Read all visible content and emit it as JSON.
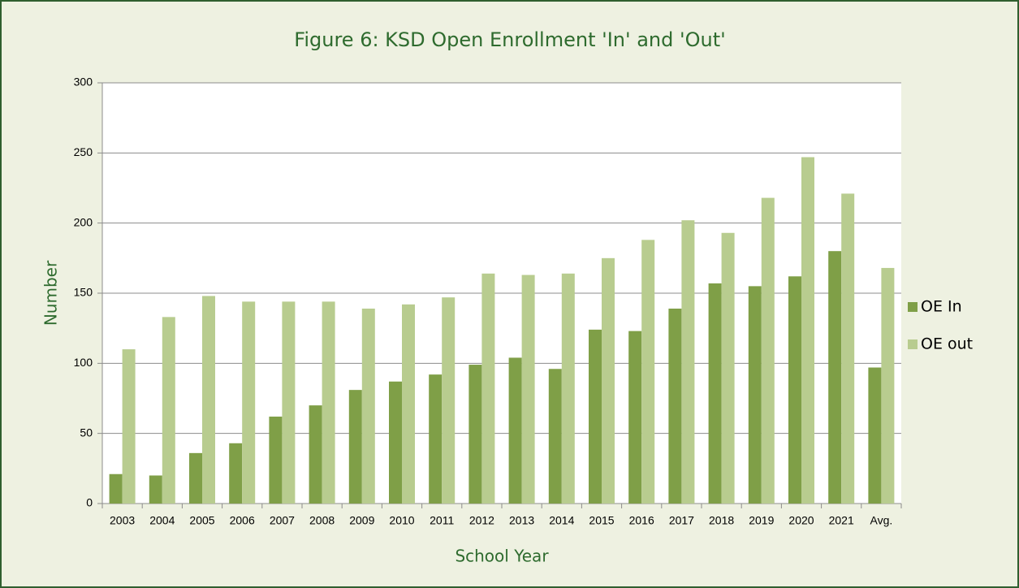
{
  "chart_data": {
    "type": "bar",
    "title": "Figure 6: KSD Open Enrollment 'In' and 'Out'",
    "x_label": "School Year",
    "y_label": "Number",
    "categories": [
      "2003",
      "2004",
      "2005",
      "2006",
      "2007",
      "2008",
      "2009",
      "2010",
      "2011",
      "2012",
      "2013",
      "2014",
      "2015",
      "2016",
      "2017",
      "2018",
      "2019",
      "2020",
      "2021",
      "Avg."
    ],
    "series": [
      {
        "name": "OE In",
        "color": "#7f9f47",
        "values": [
          21,
          20,
          36,
          43,
          62,
          70,
          81,
          87,
          92,
          99,
          104,
          96,
          124,
          123,
          139,
          157,
          155,
          162,
          180,
          97
        ]
      },
      {
        "name": "OE out",
        "color": "#b8cc8f",
        "values": [
          110,
          133,
          148,
          144,
          144,
          144,
          139,
          142,
          147,
          164,
          163,
          164,
          175,
          188,
          202,
          193,
          218,
          247,
          221,
          168
        ]
      }
    ],
    "ylim": [
      0,
      300
    ],
    "yticks": [
      0,
      50,
      100,
      150,
      200,
      250,
      300
    ],
    "grid": true,
    "legend": "right"
  }
}
